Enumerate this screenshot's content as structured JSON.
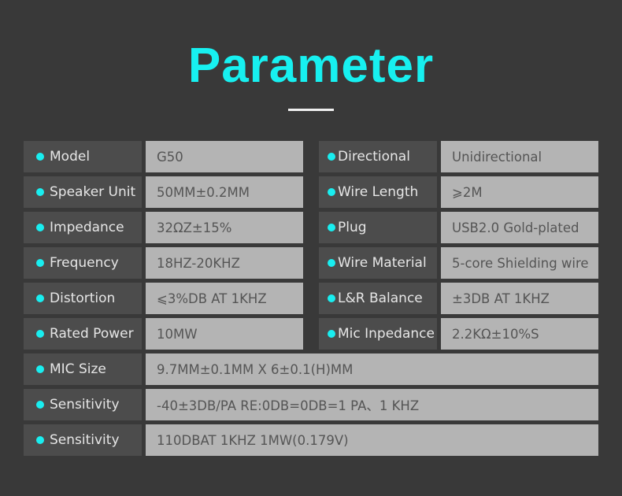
{
  "title": "Parameter",
  "rows": [
    {
      "left": {
        "label": "Model",
        "value": "G50"
      },
      "right": {
        "label": "Directional",
        "value": "Unidirectional"
      }
    },
    {
      "left": {
        "label": "Speaker Unit",
        "value": "50MM±0.2MM"
      },
      "right": {
        "label": "Wire Length",
        "value": "⩾2M"
      }
    },
    {
      "left": {
        "label": "Impedance",
        "value": "32ΩZ±15%"
      },
      "right": {
        "label": "Plug",
        "value": "USB2.0 Gold-plated"
      }
    },
    {
      "left": {
        "label": "Frequency",
        "value": "18HZ-20KHZ"
      },
      "right": {
        "label": "Wire Material",
        "value": "5-core Shielding wire"
      }
    },
    {
      "left": {
        "label": "Distortion",
        "value": "⩽3%DB AT 1KHZ"
      },
      "right": {
        "label": "L&R Balance",
        "value": "±3DB AT 1KHZ"
      }
    },
    {
      "left": {
        "label": "Rated Power",
        "value": "10MW"
      },
      "right": {
        "label": "Mic Inpedance",
        "value": "2.2KΩ±10%S"
      }
    },
    {
      "left": {
        "label": "MIC Size",
        "value": "9.7MM±0.1MM X 6±0.1(H)MM"
      }
    },
    {
      "left": {
        "label": "Sensitivity",
        "value": "-40±3DB/PA RE:0DB=0DB=1 PA、1 KHZ"
      }
    },
    {
      "left": {
        "label": "Sensitivity",
        "value": "110DBAT 1KHZ 1MW(0.179V)"
      }
    }
  ],
  "colors": {
    "accent": "#17f0f0",
    "background": "#393939",
    "label_bg": "#4c4c4c",
    "value_bg": "#b4b4b4"
  }
}
